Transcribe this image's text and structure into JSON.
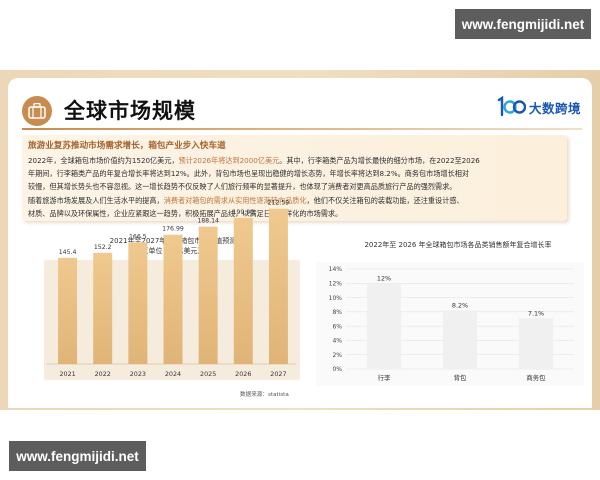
{
  "watermarks": {
    "top": "www.fengmijidi.net",
    "bottom": "www.fengmijidi.net"
  },
  "slide": {
    "title": "全球市场规模",
    "title_icon": "luggage-icon",
    "brand": {
      "logo": "100-logo-icon",
      "name": "大数跨境"
    },
    "colors": {
      "accent": "#c98b4e",
      "bar_gold": "#e0b477",
      "brand_blue": "#1a57b5",
      "highlight": "#c0723a"
    }
  },
  "summary": {
    "heading": "旅游业复苏推动市场需求增长，箱包产业步入快车道",
    "lines": [
      {
        "segments": [
          {
            "text": "2022年，全球箱包市场价值约为1520亿美元，"
          },
          {
            "text": "预计2026年将达到2000亿美元",
            "hl": true
          },
          {
            "text": "。其中，行李箱类产品为增长最快的细分市场，在2022至2026"
          }
        ]
      },
      {
        "segments": [
          {
            "text": "年期间，行李箱类产品的年复合增长率将达到12%。此外，背包市场也呈现出稳健的增长态势，年增长率将达到8.2%。商务包市场增长相对"
          }
        ]
      },
      {
        "segments": [
          {
            "text": "较慢，但其增长势头也不容忽视。这一增长趋势不仅反映了人们旅行频率的显著提升，也体现了消费者对更高品质旅行产品的强烈需求。"
          }
        ]
      },
      {
        "segments": [
          {
            "text": "随着旅游市场发展及人们生活水平的提高，"
          },
          {
            "text": "消费者对箱包的需求从实用性逐渐转向品质化",
            "hl": true
          },
          {
            "text": "，他们不仅关注箱包的装载功能，还注重设计感、"
          }
        ]
      },
      {
        "segments": [
          {
            "text": "材质、品牌以及环保属性，企业应紧跟这一趋势，积极拓展产品线，以满足日益多样化的市场需求。"
          }
        ]
      }
    ]
  },
  "chart_data": [
    {
      "type": "bar",
      "title": "2021年至2027年全球箱包市场价值预测",
      "subtitle": "（单位：十亿美元）",
      "categories": [
        "2021",
        "2022",
        "2023",
        "2024",
        "2025",
        "2026",
        "2027"
      ],
      "values": [
        145.4,
        152.2,
        166.5,
        176.99,
        188.14,
        199.99,
        212.59
      ],
      "value_labels": [
        "145.4",
        "152.2",
        "166.5",
        "176.99",
        "188.14",
        "199.99",
        "212.59"
      ],
      "xlabel": "",
      "ylabel": "",
      "ylim": [
        0,
        230
      ],
      "grid": false,
      "bar_color": "#e0b477",
      "source": "数据来源：statista"
    },
    {
      "type": "bar",
      "title": "2022年至 2026 年全球箱包市场各品类销售额年复合增长率",
      "categories": [
        "行李",
        "背包",
        "商务包"
      ],
      "values": [
        12,
        8.2,
        7.1
      ],
      "value_labels": [
        "12%",
        "8.2%",
        "7.1%"
      ],
      "y_ticks": [
        "0%",
        "2%",
        "4%",
        "6%",
        "8%",
        "10%",
        "12%",
        "14%"
      ],
      "xlabel": "",
      "ylabel": "",
      "ylim": [
        0,
        14
      ],
      "grid": true,
      "bar_color": "#f0f0f0"
    }
  ]
}
